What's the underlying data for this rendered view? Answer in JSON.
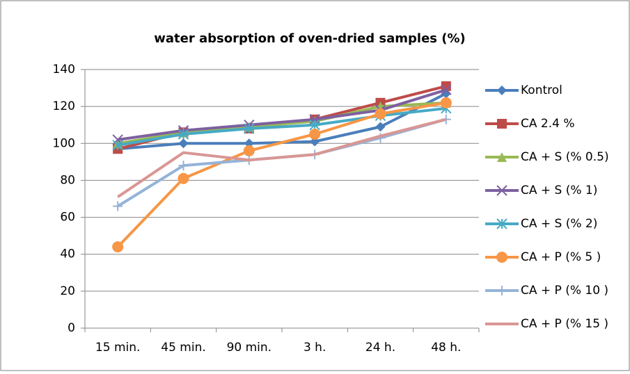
{
  "chart_data": {
    "type": "line",
    "title": "water absorption of oven-dried samples (%)",
    "categories": [
      "15 min.",
      "45 min.",
      "90 min.",
      "3 h.",
      "24 h.",
      "48 h."
    ],
    "series": [
      {
        "name": "Kontrol",
        "color": "#4a7ebb",
        "marker": "diamond",
        "values": [
          97,
          100,
          100,
          101,
          109,
          127
        ]
      },
      {
        "name": "CA 2.4 %",
        "color": "#be4b48",
        "marker": "square",
        "values": [
          97,
          106,
          108,
          113,
          122,
          131
        ]
      },
      {
        "name": "CA + S (% 0.5)",
        "color": "#98b954",
        "marker": "triangle",
        "values": [
          100,
          106,
          109,
          112,
          120,
          122
        ]
      },
      {
        "name": "CA + S (% 1)",
        "color": "#7d60a0",
        "marker": "x",
        "values": [
          102,
          107,
          110,
          113,
          118,
          129
        ]
      },
      {
        "name": "CA + S (% 2)",
        "color": "#46aac5",
        "marker": "asterisk",
        "values": [
          99,
          105,
          108,
          110,
          115,
          119
        ]
      },
      {
        "name": "CA + P (% 5 )",
        "color": "#f79646",
        "marker": "circle",
        "values": [
          44,
          81,
          96,
          105,
          116,
          122
        ]
      },
      {
        "name": "CA + P (% 10 )",
        "color": "#95b3d7",
        "marker": "plus",
        "values": [
          66,
          88,
          91,
          94,
          103,
          113
        ]
      },
      {
        "name": "CA + P (% 15  )",
        "color": "#d99694",
        "marker": "none",
        "values": [
          71,
          95,
          91,
          94,
          104,
          113
        ]
      }
    ],
    "ylim": [
      0,
      140
    ],
    "yticks": [
      0,
      20,
      40,
      60,
      80,
      100,
      120,
      140
    ],
    "grid": true,
    "legend": "right"
  }
}
